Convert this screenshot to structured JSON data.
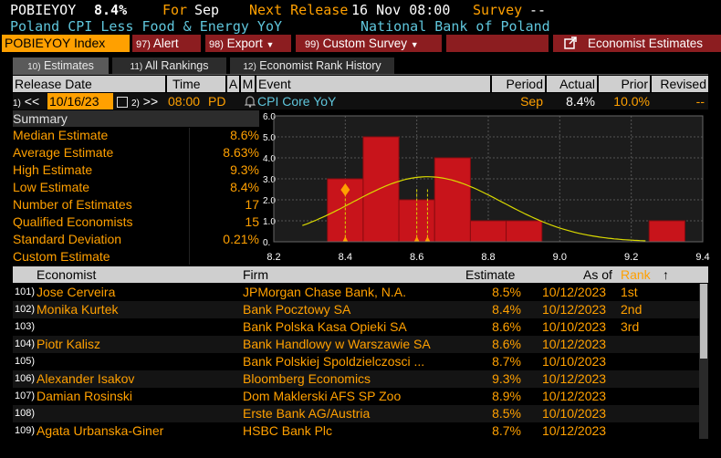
{
  "header": {
    "ticker": "POBIEYOY",
    "value": "8.4%",
    "for_label": "For",
    "for_value": "Sep",
    "next_release_label": "Next Release",
    "next_release_value": "16 Nov 08:00",
    "survey_label": "Survey",
    "survey_value": "--",
    "description": "Poland CPI Less Food & Energy YoY",
    "source": "National Bank of Poland"
  },
  "toolbar": {
    "index_label": "POBIEYOY Index",
    "alert_num": "97)",
    "alert_label": "Alert",
    "export_num": "98)",
    "export_label": "Export",
    "custom_num": "99)",
    "custom_label": "Custom Survey",
    "economist_label": "Economist Estimates"
  },
  "tabs": [
    {
      "num": "10)",
      "label": "Estimates",
      "active": true
    },
    {
      "num": "11)",
      "label": "All Rankings",
      "active": false
    },
    {
      "num": "12)",
      "label": "Economist Rank History",
      "active": false
    }
  ],
  "table_header": {
    "release_date": "Release Date",
    "time": "Time",
    "a": "A",
    "m": "M",
    "event": "Event",
    "period": "Period",
    "actual": "Actual",
    "prior": "Prior",
    "revised": "Revised"
  },
  "release_row": {
    "prev_num": "1)",
    "prev_glyph": "<<",
    "date": "10/16/23",
    "next_num": "2)",
    "next_glyph": ">>",
    "time": "08:00",
    "tz": "PD",
    "event": "CPI Core YoY",
    "period": "Sep",
    "actual": "8.4%",
    "prior": "10.0%",
    "revised": "--"
  },
  "summary": {
    "title": "Summary",
    "rows": [
      {
        "label": "Median Estimate",
        "value": "8.6%"
      },
      {
        "label": "Average Estimate",
        "value": "8.63%"
      },
      {
        "label": "High Estimate",
        "value": "9.3%"
      },
      {
        "label": "Low Estimate",
        "value": "8.4%"
      },
      {
        "label": "Number of Estimates",
        "value": "17"
      },
      {
        "label": "Qualified Economists",
        "value": "15"
      },
      {
        "label": "Standard Deviation",
        "value": "0.21%"
      },
      {
        "label": "Custom Estimate",
        "value": ""
      }
    ]
  },
  "chart_data": {
    "type": "bar",
    "title": "",
    "xlabel": "",
    "ylabel": "",
    "x_ticks": [
      "8.2",
      "8.4",
      "8.6",
      "8.8",
      "9.0",
      "9.2",
      "9.4"
    ],
    "y_ticks": [
      "0.",
      "1.0",
      "2.0",
      "3.0",
      "4.0",
      "5.0",
      "6.0"
    ],
    "xlim": [
      8.2,
      9.4
    ],
    "ylim": [
      0,
      6
    ],
    "bin_width": 0.1,
    "bins": [
      {
        "from": 8.35,
        "count": 3
      },
      {
        "from": 8.45,
        "count": 5
      },
      {
        "from": 8.55,
        "count": 2
      },
      {
        "from": 8.65,
        "count": 4
      },
      {
        "from": 8.75,
        "count": 1
      },
      {
        "from": 8.85,
        "count": 1
      },
      {
        "from": 9.25,
        "count": 1
      }
    ],
    "normal_curve": {
      "mean": 8.63,
      "sd": 0.21,
      "peak": 3.1
    },
    "markers": {
      "actual": 8.4,
      "median": 8.6,
      "mean": 8.63
    },
    "colors": {
      "bar": "#c8141b",
      "curve": "#d9d900",
      "grid": "#555555",
      "bg": "#1c1c1c",
      "marker": "#ffa000"
    }
  },
  "econ_header": {
    "economist": "Economist",
    "firm": "Firm",
    "estimate": "Estimate",
    "as_of": "As of",
    "rank": "Rank",
    "sort_glyph": "↑"
  },
  "economists": [
    {
      "num": "101)",
      "name": "Jose Cerveira",
      "firm": "JPMorgan Chase Bank, N.A.",
      "estimate": "8.5%",
      "as_of": "10/12/2023",
      "rank": "1st"
    },
    {
      "num": "102)",
      "name": "Monika Kurtek",
      "firm": "Bank Pocztowy SA",
      "estimate": "8.4%",
      "as_of": "10/12/2023",
      "rank": "2nd"
    },
    {
      "num": "103)",
      "name": "",
      "firm": "Bank Polska Kasa Opieki SA",
      "estimate": "8.6%",
      "as_of": "10/10/2023",
      "rank": "3rd"
    },
    {
      "num": "104)",
      "name": "Piotr Kalisz",
      "firm": "Bank Handlowy w Warszawie SA",
      "estimate": "8.6%",
      "as_of": "10/12/2023",
      "rank": ""
    },
    {
      "num": "105)",
      "name": "",
      "firm": "Bank Polskiej Spoldzielczosci ...",
      "estimate": "8.7%",
      "as_of": "10/10/2023",
      "rank": ""
    },
    {
      "num": "106)",
      "name": "Alexander Isakov",
      "firm": "Bloomberg Economics",
      "estimate": "9.3%",
      "as_of": "10/12/2023",
      "rank": ""
    },
    {
      "num": "107)",
      "name": "Damian Rosinski",
      "firm": "Dom Maklerski AFS SP Zoo",
      "estimate": "8.9%",
      "as_of": "10/12/2023",
      "rank": ""
    },
    {
      "num": "108)",
      "name": "",
      "firm": "Erste Bank AG/Austria",
      "estimate": "8.5%",
      "as_of": "10/10/2023",
      "rank": ""
    },
    {
      "num": "109)",
      "name": "Agata Urbanska-Giner",
      "firm": "HSBC Bank Plc",
      "estimate": "8.7%",
      "as_of": "10/12/2023",
      "rank": ""
    }
  ]
}
